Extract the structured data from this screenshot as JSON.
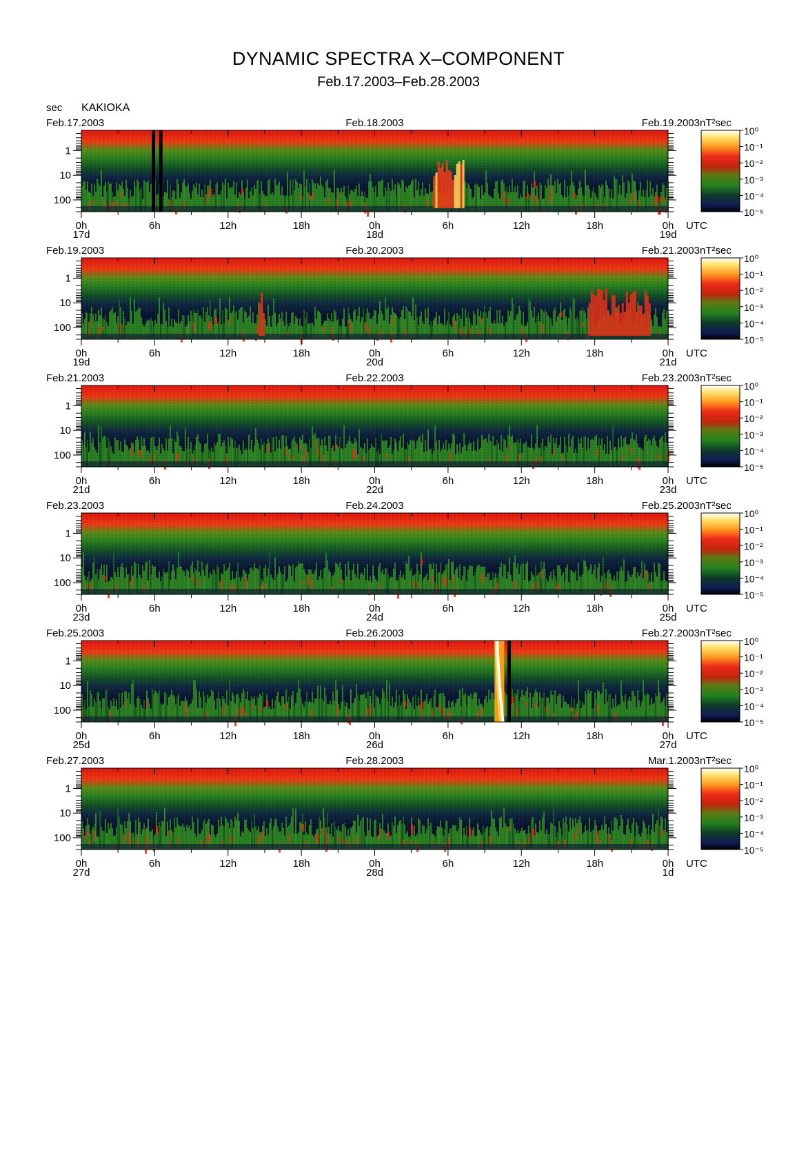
{
  "title": "DYNAMIC SPECTRA X–COMPONENT",
  "subtitle": "Feb.17.2003–Feb.28.2003",
  "station": "KAKIOKA",
  "y_unit": "sec",
  "time_unit": "UTC",
  "colorbar_unit": "nT²sec",
  "colors": {
    "background_high": "#e81e12",
    "band_green": "#2f8f1e",
    "band_dark": "#0d1a3a",
    "storm_yellow": "#ffe060",
    "storm_white": "#ffffff"
  },
  "chart_data": {
    "type": "heatmap",
    "y_axis": {
      "label": "sec",
      "ticks": [
        "1",
        "10",
        "100"
      ],
      "scale": "log",
      "inverted": true,
      "range_sec": [
        0.15,
        300
      ]
    },
    "x_hour_ticks": [
      "0h",
      "6h",
      "12h",
      "18h",
      "0h",
      "6h",
      "12h",
      "18h",
      "0h"
    ],
    "colorbar": {
      "label": "nT²sec",
      "ticks": [
        "10⁰",
        "10⁻¹",
        "10⁻²",
        "10⁻³",
        "10⁻⁴",
        "10⁻⁵"
      ]
    },
    "panels": [
      {
        "date_left": "Feb.17.2003",
        "date_mid": "Feb.18.2003",
        "date_right": "Feb.19.2003",
        "day_labels": [
          "17d",
          "18d",
          "19d"
        ],
        "events": [
          {
            "type": "gap",
            "hour": 5.9
          },
          {
            "type": "gap",
            "hour": 6.5
          },
          {
            "type": "enhancement",
            "hour_start": 28.8,
            "hour_end": 31.2,
            "level": "strong"
          }
        ]
      },
      {
        "date_left": "Feb.19.2003",
        "date_mid": "Feb.20.2003",
        "date_right": "Feb.21.2003",
        "day_labels": [
          "19d",
          "20d",
          "21d"
        ],
        "events": [
          {
            "type": "enhancement",
            "hour_start": 14.5,
            "hour_end": 15.0,
            "level": "medium"
          },
          {
            "type": "enhancement",
            "hour_start": 41.5,
            "hour_end": 46.5,
            "level": "medium"
          }
        ]
      },
      {
        "date_left": "Feb.21.2003",
        "date_mid": "Feb.22.2003",
        "date_right": "Feb.23.2003",
        "day_labels": [
          "21d",
          "22d",
          "23d"
        ],
        "events": []
      },
      {
        "date_left": "Feb.23.2003",
        "date_mid": "Feb.24.2003",
        "date_right": "Feb.25.2003",
        "day_labels": [
          "23d",
          "24d",
          "25d"
        ],
        "events": []
      },
      {
        "date_left": "Feb.25.2003",
        "date_mid": "Feb.26.2003",
        "date_right": "Feb.27.2003",
        "day_labels": [
          "25d",
          "26d",
          "27d"
        ],
        "events": [
          {
            "type": "spike",
            "hour_start": 33.8,
            "hour_end": 34.6,
            "level": "extreme"
          },
          {
            "type": "gap",
            "hour": 35.0
          }
        ]
      },
      {
        "date_left": "Feb.27.2003",
        "date_mid": "Feb.28.2003",
        "date_right": "Mar.1.2003",
        "day_labels": [
          "27d",
          "28d",
          "1d"
        ],
        "events": []
      }
    ]
  }
}
